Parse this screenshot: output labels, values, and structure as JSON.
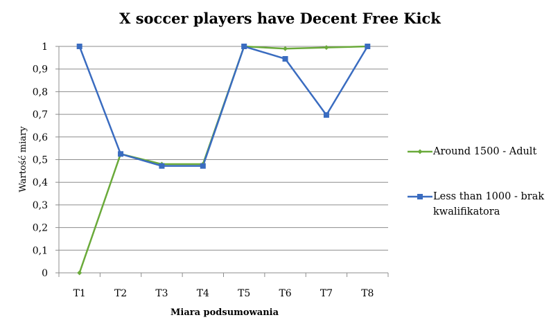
{
  "chart_data": {
    "type": "line",
    "title": "X soccer players have Decent Free Kick",
    "xlabel": "Miara podsumowania",
    "ylabel": "Wartość miary",
    "categories": [
      "T1",
      "T2",
      "T3",
      "T4",
      "T5",
      "T6",
      "T7",
      "T8"
    ],
    "ylim": [
      0,
      1
    ],
    "yticks": [
      "0",
      "0,1",
      "0,2",
      "0,3",
      "0,4",
      "0,5",
      "0,6",
      "0,7",
      "0,8",
      "0,9",
      "1"
    ],
    "grid": true,
    "legend_position": "right",
    "series": [
      {
        "name": "Around 1500 - Adult",
        "color": "#6aaa3a",
        "marker": "diamond",
        "values": [
          0,
          0.525,
          0.48,
          0.48,
          1.0,
          0.99,
          0.995,
          1.0
        ]
      },
      {
        "name": "Less than 1000 - brak kwalifikatora",
        "color": "#3a6cc0",
        "marker": "square",
        "values": [
          1.0,
          0.525,
          0.472,
          0.472,
          1.0,
          0.945,
          0.697,
          1.0
        ]
      }
    ]
  }
}
